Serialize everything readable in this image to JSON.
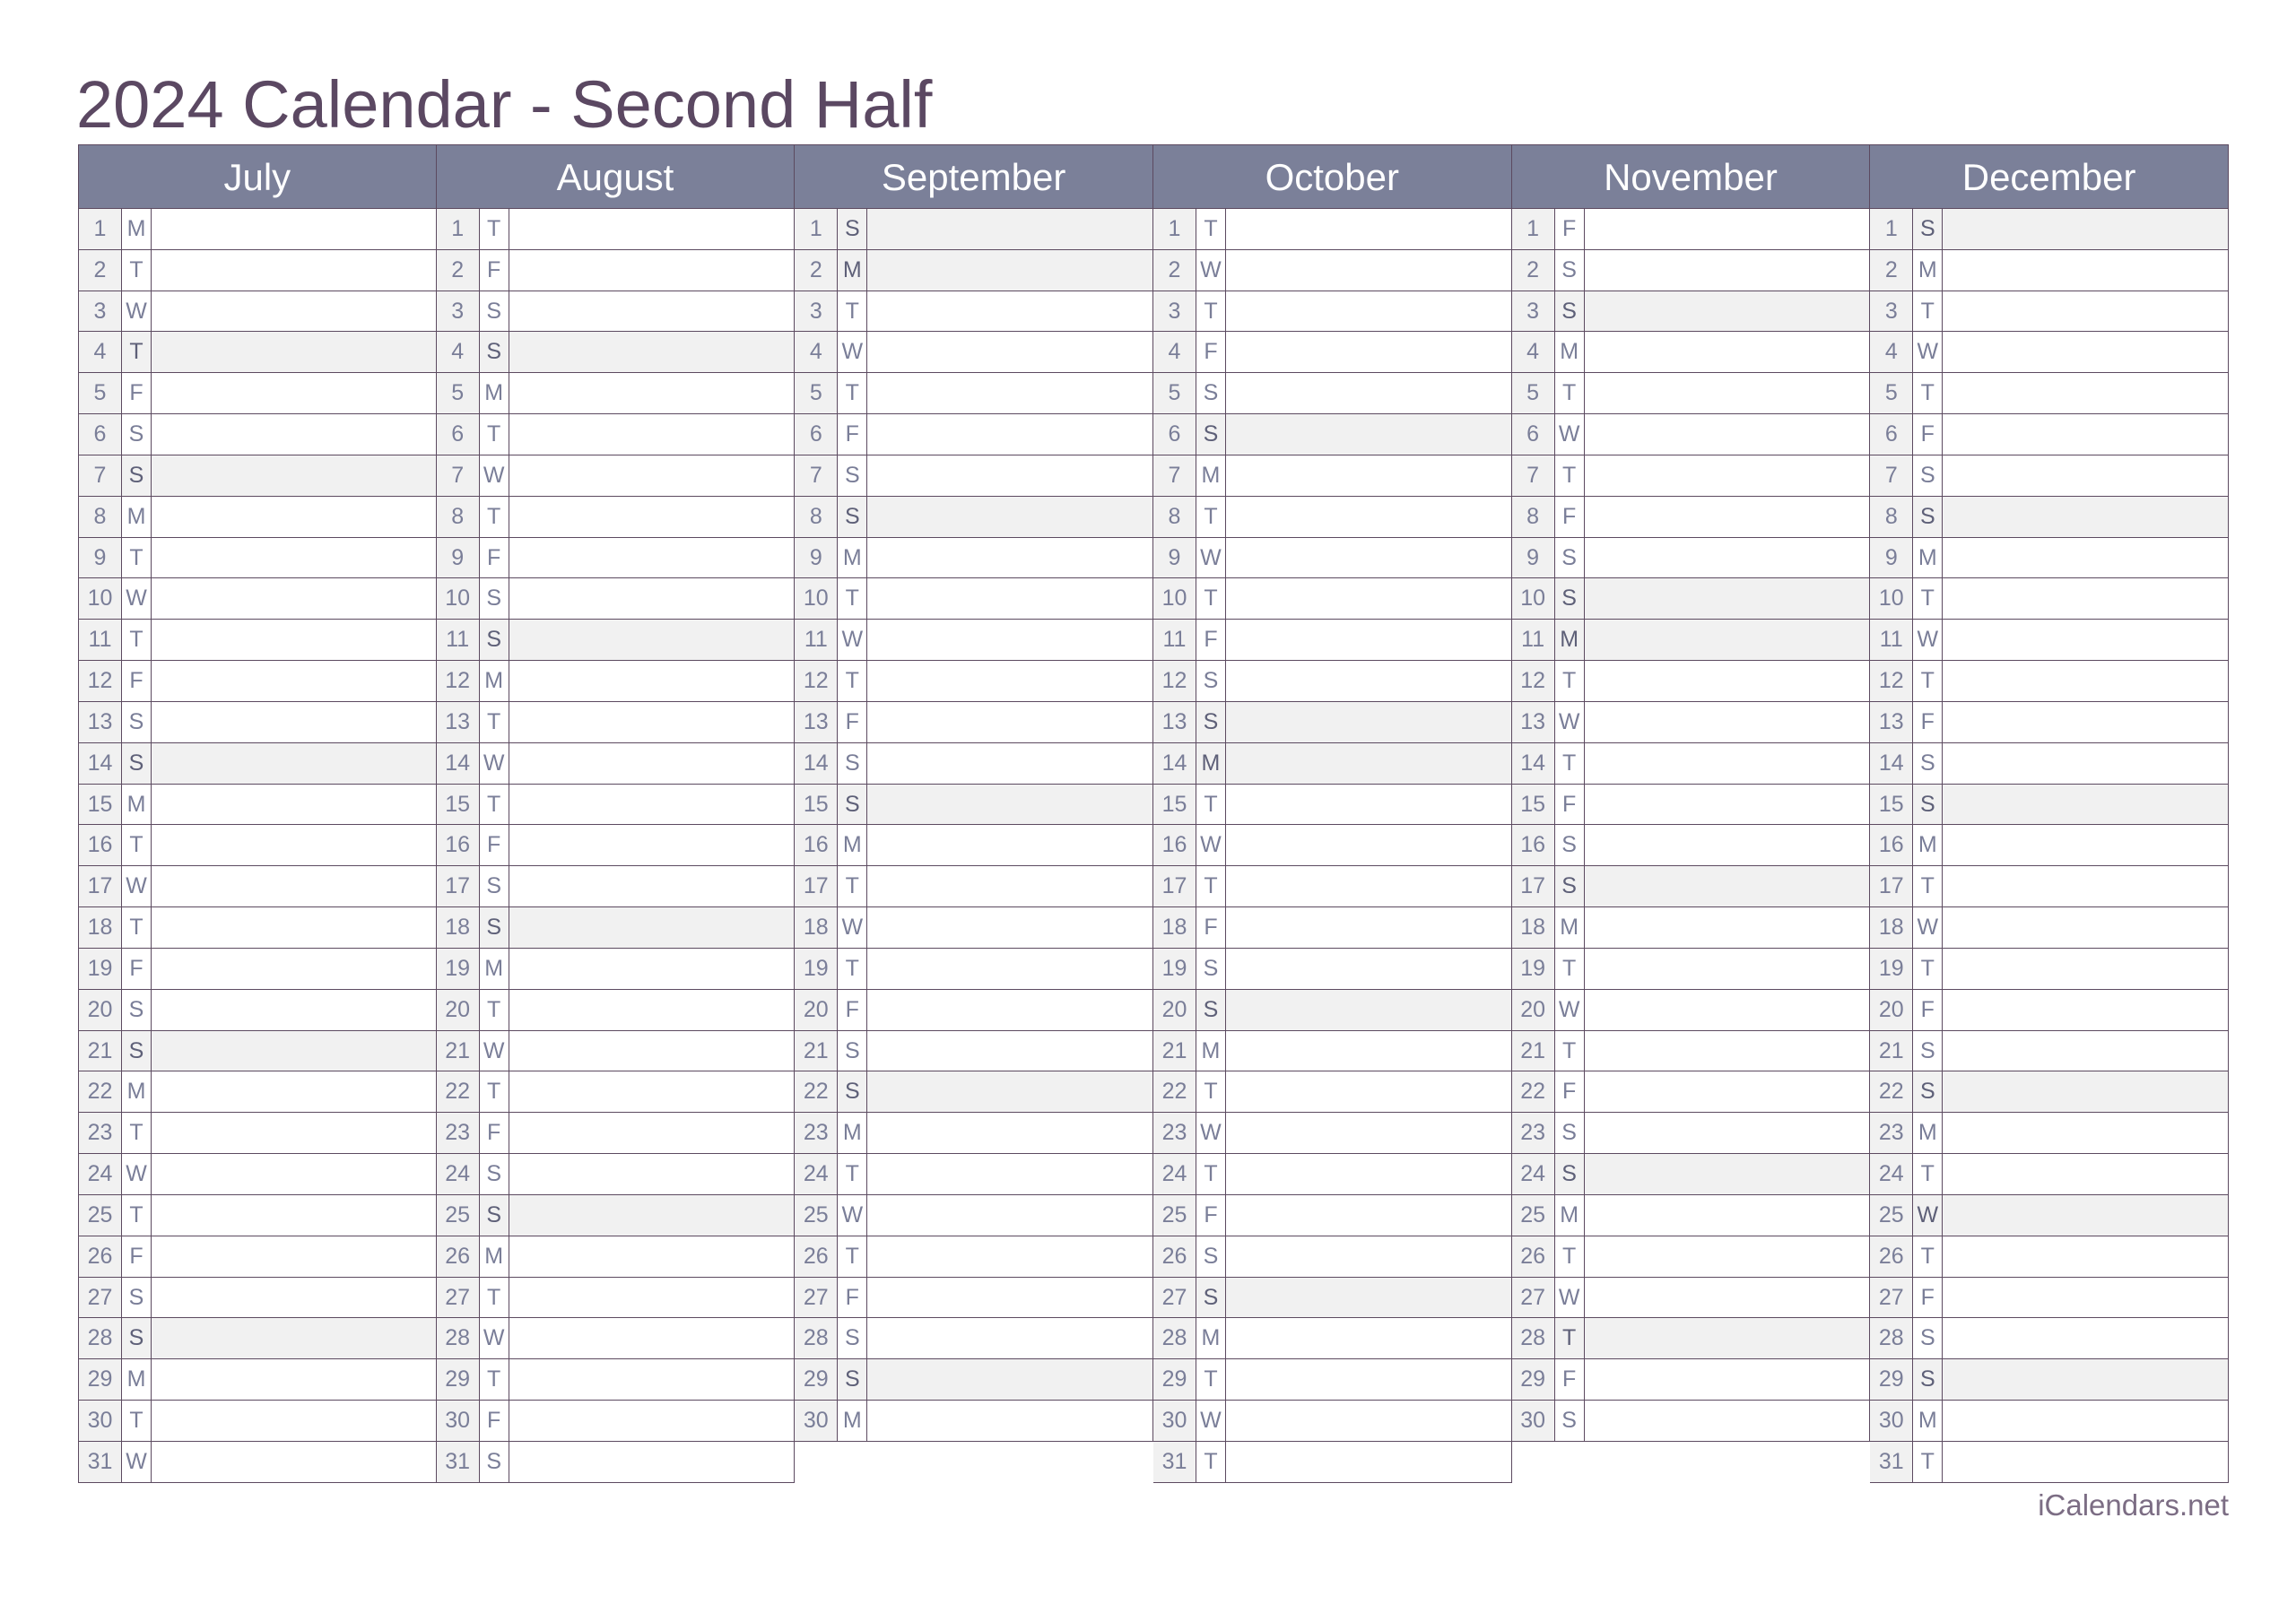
{
  "title": "2024 Calendar - Second Half",
  "footer": "iCalendars.net",
  "colors": {
    "header_bg": "#7b8099",
    "title": "#5b4862",
    "shaded_row": "#f1f1f1",
    "border": "#5c4a60"
  },
  "months": [
    {
      "name": "July",
      "days": [
        "M",
        "T",
        "W",
        "T",
        "F",
        "S",
        "S",
        "M",
        "T",
        "W",
        "T",
        "F",
        "S",
        "S",
        "M",
        "T",
        "W",
        "T",
        "F",
        "S",
        "S",
        "M",
        "T",
        "W",
        "T",
        "F",
        "S",
        "S",
        "M",
        "T",
        "W"
      ],
      "shaded": [
        4,
        7,
        14,
        21,
        28
      ]
    },
    {
      "name": "August",
      "days": [
        "T",
        "F",
        "S",
        "S",
        "M",
        "T",
        "W",
        "T",
        "F",
        "S",
        "S",
        "M",
        "T",
        "W",
        "T",
        "F",
        "S",
        "S",
        "M",
        "T",
        "W",
        "T",
        "F",
        "S",
        "S",
        "M",
        "T",
        "W",
        "T",
        "F",
        "S"
      ],
      "shaded": [
        4,
        11,
        18,
        25
      ]
    },
    {
      "name": "September",
      "days": [
        "S",
        "M",
        "T",
        "W",
        "T",
        "F",
        "S",
        "S",
        "M",
        "T",
        "W",
        "T",
        "F",
        "S",
        "S",
        "M",
        "T",
        "W",
        "T",
        "F",
        "S",
        "S",
        "M",
        "T",
        "W",
        "T",
        "F",
        "S",
        "S",
        "M"
      ],
      "shaded": [
        1,
        2,
        8,
        15,
        22,
        29
      ]
    },
    {
      "name": "October",
      "days": [
        "T",
        "W",
        "T",
        "F",
        "S",
        "S",
        "M",
        "T",
        "W",
        "T",
        "F",
        "S",
        "S",
        "M",
        "T",
        "W",
        "T",
        "F",
        "S",
        "S",
        "M",
        "T",
        "W",
        "T",
        "F",
        "S",
        "S",
        "M",
        "T",
        "W",
        "T"
      ],
      "shaded": [
        6,
        13,
        14,
        20,
        27
      ]
    },
    {
      "name": "November",
      "days": [
        "F",
        "S",
        "S",
        "M",
        "T",
        "W",
        "T",
        "F",
        "S",
        "S",
        "M",
        "T",
        "W",
        "T",
        "F",
        "S",
        "S",
        "M",
        "T",
        "W",
        "T",
        "F",
        "S",
        "S",
        "M",
        "T",
        "W",
        "T",
        "F",
        "S"
      ],
      "shaded": [
        3,
        10,
        11,
        17,
        24,
        28
      ]
    },
    {
      "name": "December",
      "days": [
        "S",
        "M",
        "T",
        "W",
        "T",
        "F",
        "S",
        "S",
        "M",
        "T",
        "W",
        "T",
        "F",
        "S",
        "S",
        "M",
        "T",
        "W",
        "T",
        "F",
        "S",
        "S",
        "M",
        "T",
        "W",
        "T",
        "F",
        "S",
        "S",
        "M",
        "T"
      ],
      "shaded": [
        1,
        8,
        15,
        22,
        25,
        29
      ]
    }
  ]
}
